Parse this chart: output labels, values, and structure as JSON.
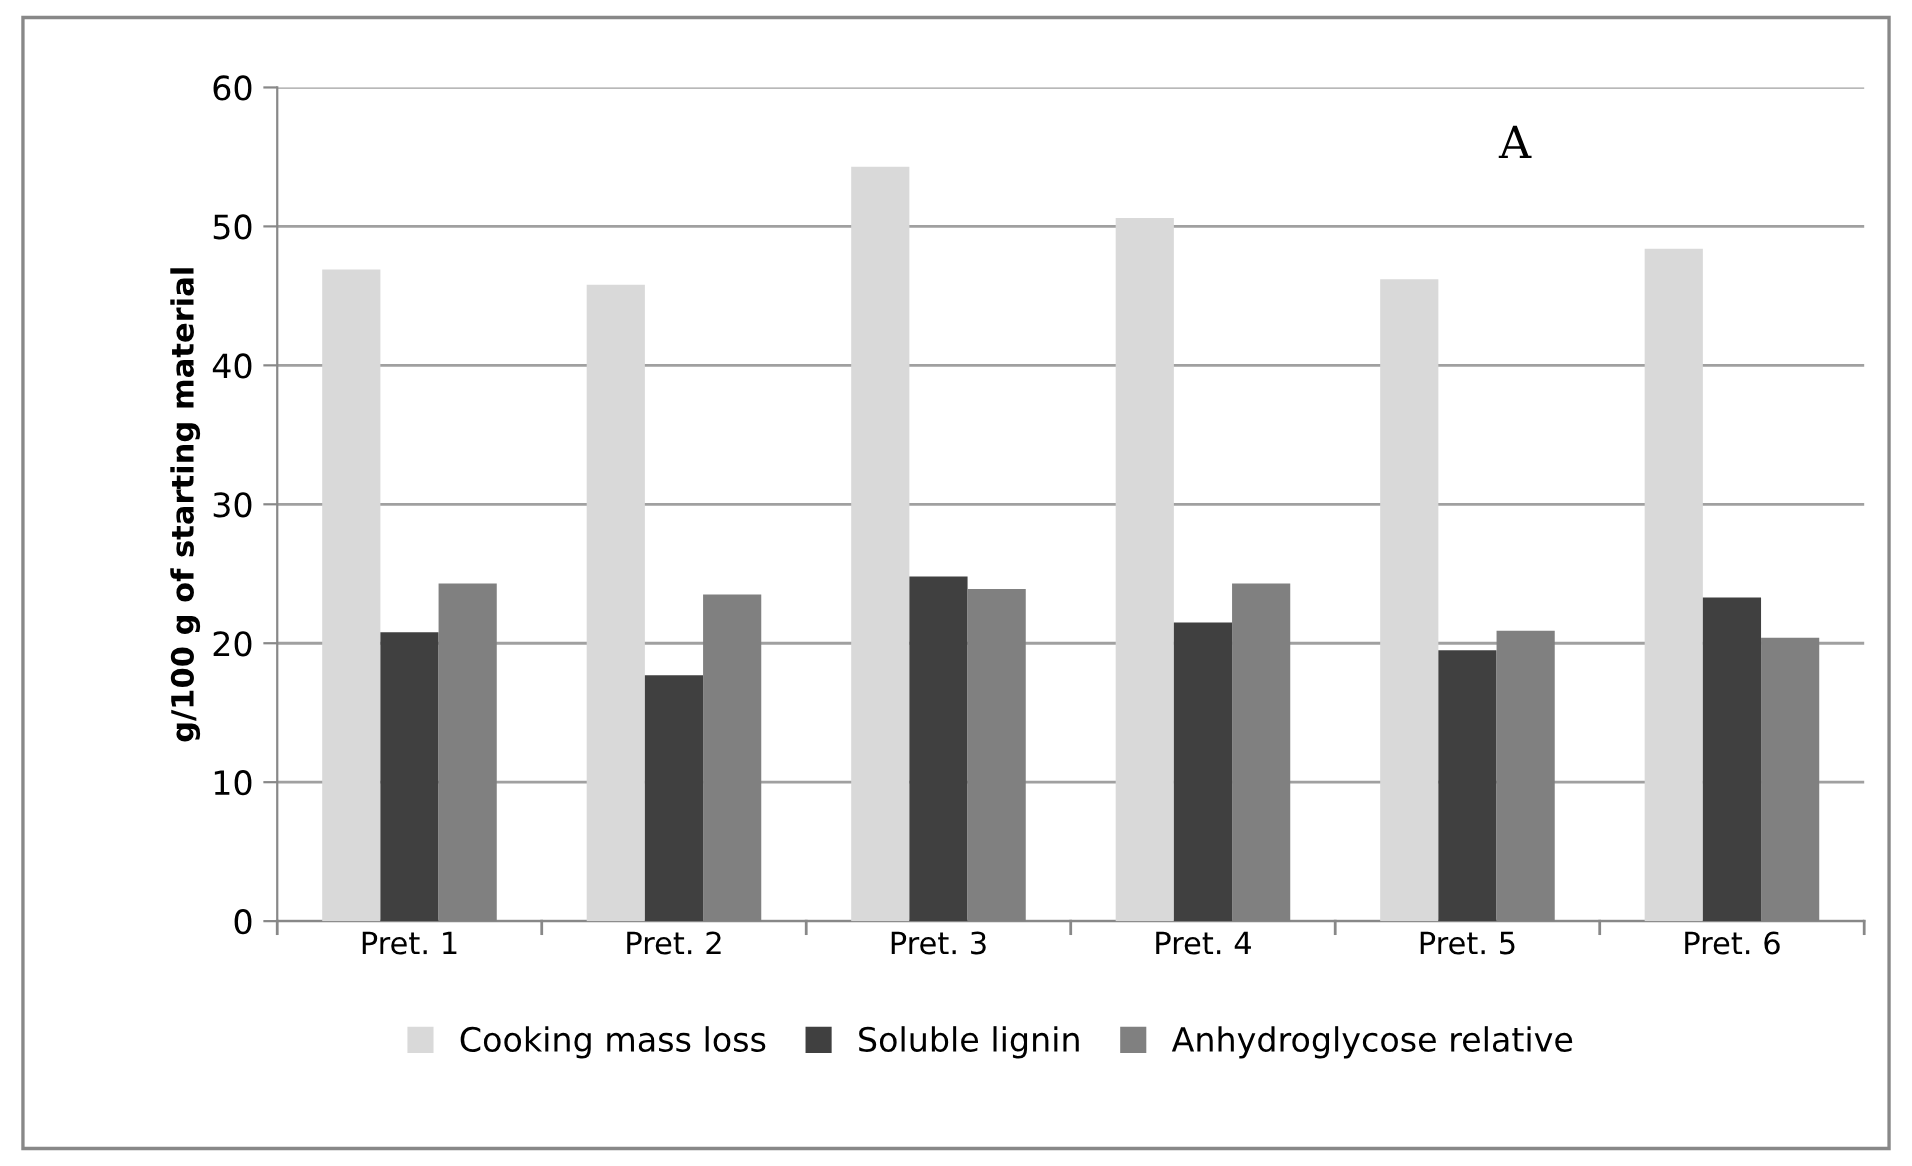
{
  "chart_data": {
    "type": "bar",
    "ylabel": "g/100 g of starting material",
    "categories": [
      "Pret. 1",
      "Pret. 2",
      "Pret. 3",
      "Pret. 4",
      "Pret. 5",
      "Pret. 6"
    ],
    "series": [
      {
        "name": "Cooking mass loss",
        "color": "#d9d9d9",
        "values": [
          46.9,
          45.8,
          54.3,
          50.6,
          46.2,
          48.4
        ]
      },
      {
        "name": "Soluble lignin",
        "color": "#404040",
        "values": [
          20.8,
          17.7,
          24.8,
          21.5,
          19.5,
          23.3
        ]
      },
      {
        "name": "Anhydroglycose relative",
        "color": "#808080",
        "values": [
          24.3,
          23.5,
          23.9,
          24.3,
          20.9,
          20.4
        ]
      }
    ],
    "ylim": [
      0,
      60
    ],
    "yticks": [
      0,
      10,
      20,
      30,
      40,
      50,
      60
    ],
    "grid": "y",
    "legend": "bottom",
    "annotations": [
      "A"
    ]
  }
}
